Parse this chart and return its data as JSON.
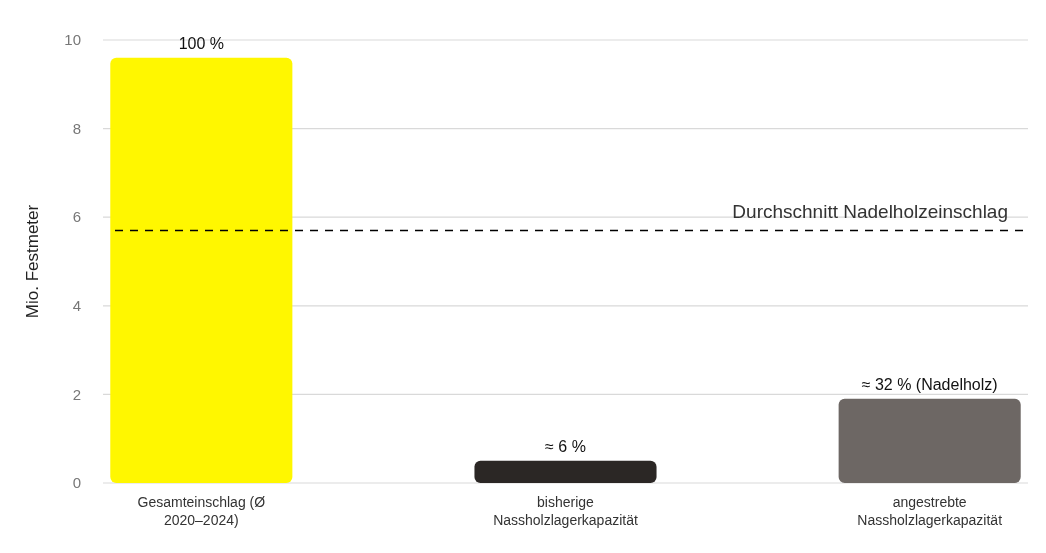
{
  "chart_data": {
    "type": "bar",
    "ylabel": "Mio. Festmeter",
    "categories": [
      "Gesamteinschlag (Ø 2020–2024)",
      "bisherige Nassholzlagerkapazität",
      "angestrebte Nassholzlagerkapazität"
    ],
    "values": [
      9.6,
      0.5,
      1.9
    ],
    "colors": [
      "#fff700",
      "#2b2725",
      "#6d6764"
    ],
    "annotations": [
      {
        "text": "100 %",
        "x": "Gesamteinschlag (Ø 2020–2024)",
        "y": 9.6
      },
      {
        "text": "≈ 6 %",
        "x": "bisherige Nassholzlagerkapazität",
        "y": 0.5
      },
      {
        "text": "≈ 32 % (Nadelholz)",
        "x": "angestrebte Nassholzlagerkapazität",
        "y": 1.9
      }
    ],
    "ylim": [
      0,
      10
    ],
    "yticks": [
      0,
      2,
      4,
      6,
      8,
      10
    ],
    "grid": "y",
    "ref_lines": [
      {
        "axis": "y",
        "value": 5.7,
        "label": "Durchschnitt Nadelholzeinschlag",
        "color": "#000000",
        "line_style": "dashed"
      }
    ]
  }
}
